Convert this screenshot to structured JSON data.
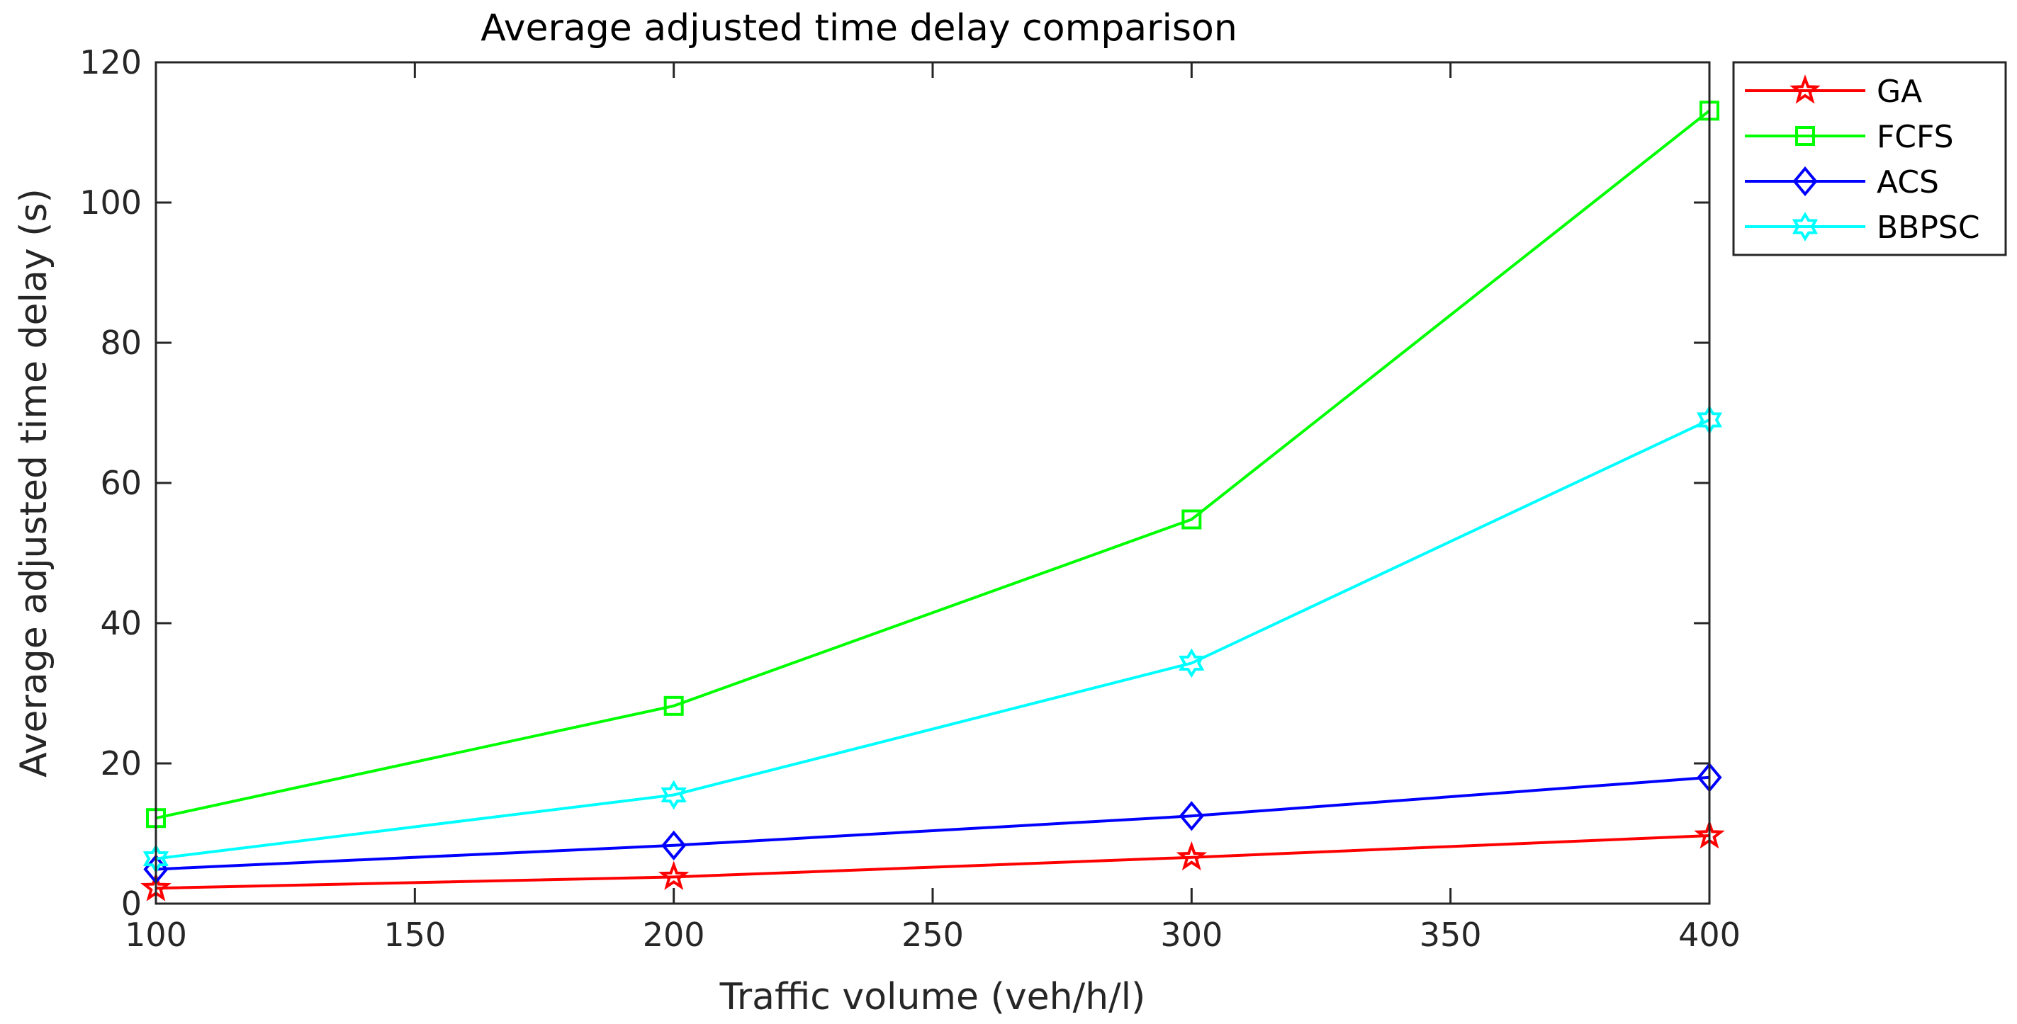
{
  "chart_data": {
    "type": "line",
    "title": "Average adjusted time delay comparison",
    "xlabel": "Traffic volume (veh/h/l)",
    "ylabel": "Average adjusted time delay (s)",
    "xlim": [
      100,
      400
    ],
    "ylim": [
      0,
      120
    ],
    "xticks": [
      100,
      150,
      200,
      250,
      300,
      350,
      400
    ],
    "yticks": [
      0,
      20,
      40,
      60,
      80,
      100,
      120
    ],
    "grid": false,
    "legend_position": "outside-top-right",
    "x": [
      100,
      200,
      300,
      400
    ],
    "series": [
      {
        "name": "GA",
        "color": "#ff0000",
        "marker": "pentagram",
        "values": [
          2.2,
          3.8,
          6.6,
          9.7
        ]
      },
      {
        "name": "FCFS",
        "color": "#00ff00",
        "marker": "square",
        "values": [
          12.2,
          28.2,
          54.8,
          113.1
        ]
      },
      {
        "name": "ACS",
        "color": "#0000ff",
        "marker": "diamond",
        "values": [
          4.9,
          8.3,
          12.5,
          18.0
        ]
      },
      {
        "name": "BBPSC",
        "color": "#00ffff",
        "marker": "hexagram",
        "values": [
          6.4,
          15.5,
          34.3,
          69.0
        ]
      }
    ]
  }
}
